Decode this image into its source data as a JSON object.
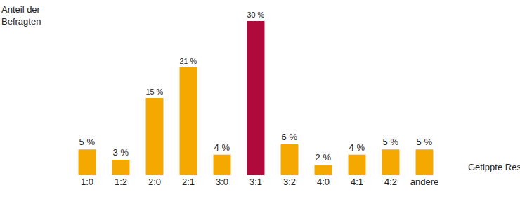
{
  "chart_data": {
    "type": "bar",
    "y_label": "Anteil der Befragten",
    "x_label": "Getippte Resultate",
    "categories": [
      "1:0",
      "1:2",
      "2:0",
      "2:1",
      "3:0",
      "3:1",
      "3:2",
      "4:0",
      "4:1",
      "4:2",
      "andere"
    ],
    "values": [
      5,
      3,
      15,
      21,
      4,
      30,
      6,
      2,
      4,
      5,
      5
    ],
    "value_labels": [
      "5 %",
      "3 %",
      "15 %",
      "21 %",
      "4 %",
      "30 %",
      "6 %",
      "2 %",
      "4 %",
      "5 %",
      "5 %"
    ],
    "colors": [
      "#f5a800",
      "#f5a800",
      "#f5a800",
      "#f5a800",
      "#f5a800",
      "#b00a3c",
      "#f5a800",
      "#f5a800",
      "#f5a800",
      "#f5a800",
      "#f5a800"
    ],
    "ylim": [
      0,
      30
    ],
    "grid": false,
    "data_labels": true,
    "tick_labels": "x"
  }
}
